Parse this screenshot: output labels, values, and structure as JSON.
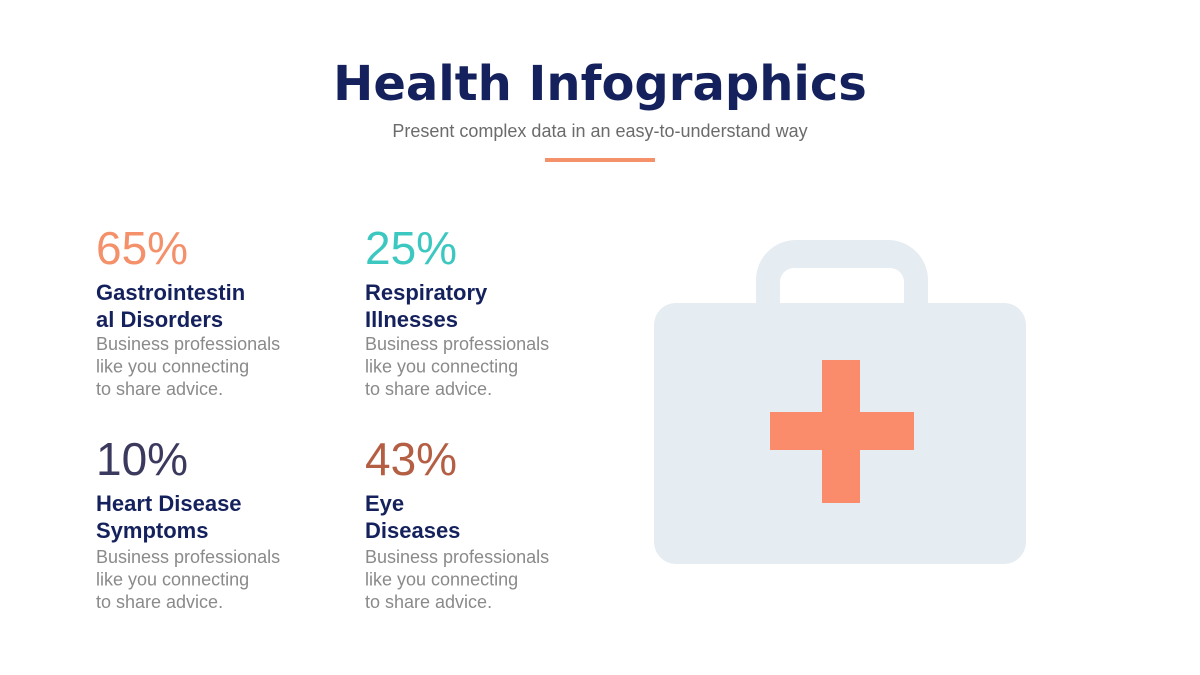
{
  "header": {
    "title": "Health Infographics",
    "subtitle": "Present complex data in an easy-to-understand way",
    "accent_color": "#f4906a"
  },
  "stats": [
    {
      "value": "65%",
      "color": "#f4906a",
      "label_lines": [
        "Gastrointestin",
        "al Disorders"
      ],
      "description_lines": [
        "Business professionals",
        "like you connecting",
        "to share advice."
      ]
    },
    {
      "value": "25%",
      "color": "#3cc8c0",
      "label_lines": [
        "Respiratory",
        "Illnesses"
      ],
      "description_lines": [
        "Business professionals",
        "like you connecting",
        "to share advice."
      ]
    },
    {
      "value": "10%",
      "color": "#3b3a5e",
      "label_lines": [
        "Heart Disease",
        "Symptoms"
      ],
      "description_lines": [
        "Business professionals",
        "like you connecting",
        "to share advice."
      ]
    },
    {
      "value": "43%",
      "color": "#b45e44",
      "label_lines": [
        "Eye",
        "Diseases"
      ],
      "description_lines": [
        "Business professionals",
        "like you connecting",
        "to share advice."
      ]
    }
  ]
}
